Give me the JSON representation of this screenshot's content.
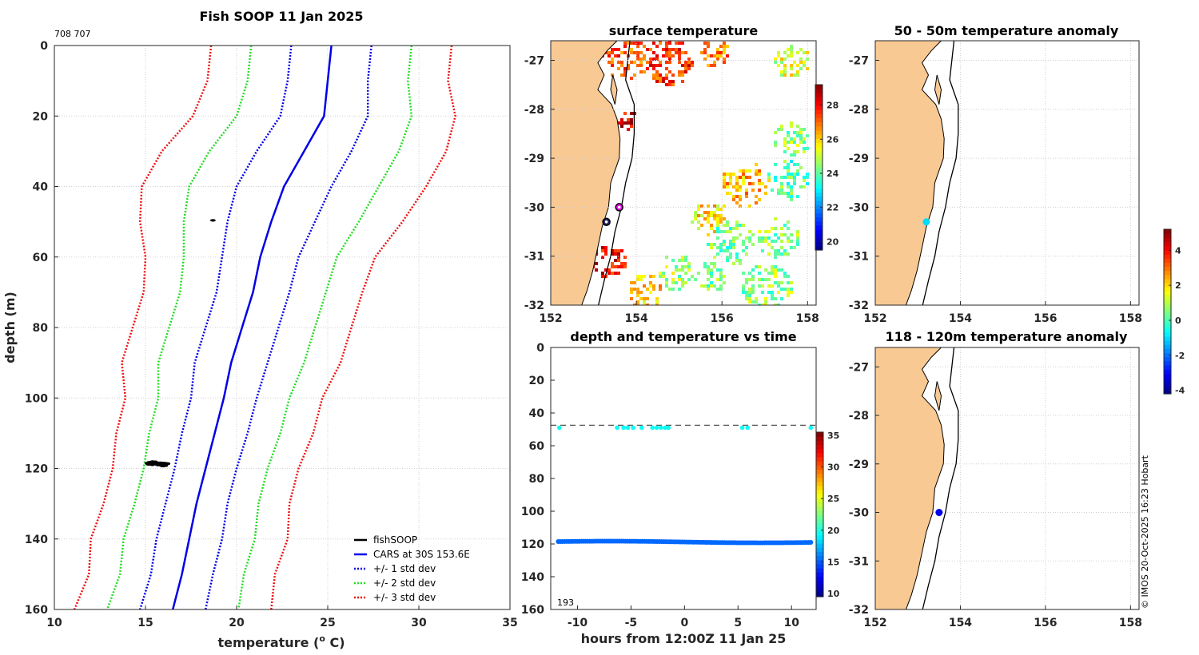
{
  "chart_data": [
    {
      "id": "profile",
      "type": "line",
      "title": "Fish SOOP 11 Jan 2025",
      "id_text": "708 707",
      "xlabel": "temperature (° C)",
      "ylabel": "depth (m)",
      "xlim": [
        10,
        35
      ],
      "ylim": [
        0,
        160
      ],
      "xticks": [
        10,
        15,
        20,
        25,
        30,
        35
      ],
      "yticks": [
        0,
        20,
        40,
        60,
        80,
        100,
        120,
        140,
        160
      ],
      "legend": [
        {
          "label": "fishSOOP",
          "color": "#000000",
          "style": "solid"
        },
        {
          "label": "CARS at 30S 153.6E",
          "color": "#0000e6",
          "style": "solid"
        },
        {
          "label": "+/- 1 std dev",
          "color": "#0000e6",
          "style": "dotted"
        },
        {
          "label": "+/- 2 std dev",
          "color": "#22dd22",
          "style": "dotted"
        },
        {
          "label": "+/- 3 std dev",
          "color": "#ee1111",
          "style": "dotted"
        }
      ],
      "depth": [
        0,
        10,
        20,
        30,
        40,
        50,
        60,
        70,
        80,
        90,
        100,
        110,
        120,
        130,
        140,
        150,
        160
      ],
      "cars_mean": [
        25.2,
        25.0,
        24.8,
        23.7,
        22.6,
        21.9,
        21.3,
        20.9,
        20.3,
        19.7,
        19.3,
        18.8,
        18.3,
        17.8,
        17.4,
        17.0,
        16.5
      ],
      "std_one": [
        2.2,
        2.2,
        2.4,
        2.6,
        2.6,
        2.4,
        2.1,
        2.0,
        2.0,
        2.0,
        1.8,
        1.8,
        1.7,
        1.7,
        1.8,
        1.7,
        1.8
      ],
      "fishsoop": [
        {
          "t": 15.3,
          "d": 118.6
        },
        {
          "t": 15.6,
          "d": 118.4
        },
        {
          "t": 15.9,
          "d": 118.9
        },
        {
          "t": 15.2,
          "d": 118.2
        },
        {
          "t": 15.8,
          "d": 118.7
        },
        {
          "t": 16.0,
          "d": 119.0
        },
        {
          "t": 15.5,
          "d": 118.5
        },
        {
          "t": 15.7,
          "d": 118.8
        },
        {
          "t": 18.7,
          "d": 49.6
        }
      ]
    },
    {
      "id": "sst",
      "type": "heatmap",
      "title": "surface temperature",
      "xlim": [
        152,
        158.2
      ],
      "ylim": [
        -32,
        -26.6
      ],
      "xticks": [
        152,
        154,
        156,
        158
      ],
      "yticks": [
        -27,
        -28,
        -29,
        -30,
        -31,
        -32
      ],
      "colorbar": {
        "min": 19.5,
        "max": 29.2,
        "ticks": [
          20,
          22,
          24,
          26,
          28
        ]
      },
      "markers": [
        {
          "lon": 153.6,
          "lat": -30.0,
          "color": "#ff00ff",
          "kind": "ring"
        },
        {
          "lon": 153.3,
          "lat": -30.3,
          "color": "#222266",
          "kind": "ring"
        }
      ],
      "patches": [
        {
          "lon": 153.7,
          "lat": -26.9,
          "r": 0.45,
          "temp": 27.3
        },
        {
          "lon": 154.7,
          "lat": -27.0,
          "r": 0.5,
          "temp": 27.6
        },
        {
          "lon": 155.8,
          "lat": -26.8,
          "r": 0.3,
          "temp": 26.8
        },
        {
          "lon": 157.6,
          "lat": -27.0,
          "r": 0.35,
          "temp": 25.3
        },
        {
          "lon": 157.6,
          "lat": -28.6,
          "r": 0.35,
          "temp": 24.6
        },
        {
          "lon": 157.5,
          "lat": -29.4,
          "r": 0.4,
          "temp": 24.0
        },
        {
          "lon": 156.5,
          "lat": -29.5,
          "r": 0.45,
          "temp": 26.3
        },
        {
          "lon": 155.7,
          "lat": -30.2,
          "r": 0.35,
          "temp": 25.8
        },
        {
          "lon": 156.2,
          "lat": -30.7,
          "r": 0.45,
          "temp": 24.2
        },
        {
          "lon": 157.3,
          "lat": -30.6,
          "r": 0.4,
          "temp": 24.5
        },
        {
          "lon": 153.3,
          "lat": -31.1,
          "r": 0.35,
          "temp": 28.0
        },
        {
          "lon": 154.9,
          "lat": -31.3,
          "r": 0.35,
          "temp": 24.8
        },
        {
          "lon": 155.7,
          "lat": -31.4,
          "r": 0.3,
          "temp": 24.3
        },
        {
          "lon": 154.2,
          "lat": -31.7,
          "r": 0.35,
          "temp": 26.0
        },
        {
          "lon": 157.0,
          "lat": -31.6,
          "r": 0.5,
          "temp": 24.5
        },
        {
          "lon": 153.8,
          "lat": -28.2,
          "r": 0.2,
          "temp": 28.2
        }
      ]
    },
    {
      "id": "anom50",
      "type": "scatter",
      "title": "50 - 50m temperature anomaly",
      "xlim": [
        152,
        158.2
      ],
      "ylim": [
        -32,
        -26.6
      ],
      "xticks": [
        152,
        154,
        156,
        158
      ],
      "yticks": [
        -27,
        -28,
        -29,
        -30,
        -31,
        -32
      ],
      "points": [
        {
          "lon": 153.2,
          "lat": -30.3,
          "anomaly": -1.0
        }
      ]
    },
    {
      "id": "anom120",
      "type": "scatter",
      "title": "118 - 120m temperature anomaly",
      "xlim": [
        152,
        158.2
      ],
      "ylim": [
        -32,
        -26.6
      ],
      "xticks": [
        152,
        154,
        156,
        158
      ],
      "yticks": [
        -27,
        -28,
        -29,
        -30,
        -31,
        -32
      ],
      "points": [
        {
          "lon": 153.5,
          "lat": -30.0,
          "anomaly": -3.2
        }
      ]
    },
    {
      "id": "timeseries",
      "type": "scatter",
      "title": "depth and temperature vs time",
      "xlabel": "hours from 12:00Z 11 Jan 25",
      "xlim": [
        -12.5,
        12.3
      ],
      "ylim": [
        0,
        160
      ],
      "xticks": [
        -10,
        -5,
        0,
        5,
        10
      ],
      "yticks": [
        0,
        20,
        40,
        60,
        80,
        100,
        120,
        140,
        160
      ],
      "reference_depth": 47.5,
      "count_text": "193",
      "colorbar": {
        "min": 9.5,
        "max": 35.5,
        "ticks": [
          10,
          15,
          20,
          25,
          30,
          35
        ]
      },
      "shallow_points": [
        {
          "h": -11.7,
          "d": 49,
          "temp": 19.5
        },
        {
          "h": -6.3,
          "d": 49,
          "temp": 19.5
        },
        {
          "h": -5.7,
          "d": 49,
          "temp": 19.5
        },
        {
          "h": -5.3,
          "d": 49,
          "temp": 19.5
        },
        {
          "h": -4.8,
          "d": 49,
          "temp": 19.5
        },
        {
          "h": -4.0,
          "d": 49,
          "temp": 19.5
        },
        {
          "h": -3.0,
          "d": 49,
          "temp": 19.5
        },
        {
          "h": -2.6,
          "d": 49,
          "temp": 19.5
        },
        {
          "h": -2.2,
          "d": 49,
          "temp": 19.5
        },
        {
          "h": -1.8,
          "d": 49,
          "temp": 19.5
        },
        {
          "h": -1.5,
          "d": 49,
          "temp": 19.5
        },
        {
          "h": 5.4,
          "d": 49,
          "temp": 19.5
        },
        {
          "h": 5.9,
          "d": 49,
          "temp": 19.5
        },
        {
          "h": 11.8,
          "d": 49,
          "temp": 19.5
        }
      ],
      "deep_series": {
        "h_start": -11.8,
        "h_end": 11.8,
        "mean_depth": 118.8,
        "amplitude": 0.5,
        "temp": 15.4
      }
    }
  ],
  "anomaly_colorbar": {
    "min": -4.2,
    "max": 5.2,
    "ticks": [
      -4,
      -2,
      0,
      2,
      4
    ]
  },
  "footer": {
    "credit": "© IMOS 20-Oct-2025 16:23 Hobart"
  },
  "colors": {
    "land": "#f9c994",
    "coast": "#000000",
    "grid": "#d0d0d0"
  }
}
